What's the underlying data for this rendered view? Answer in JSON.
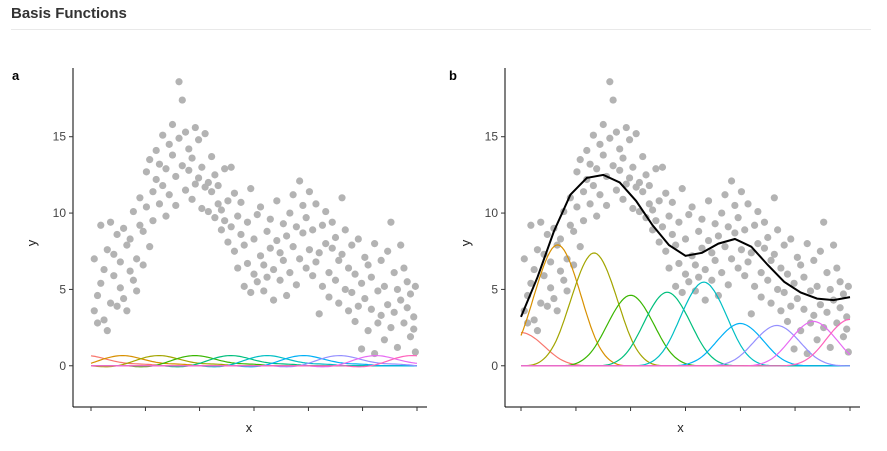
{
  "header": {
    "title": "Basis Functions"
  },
  "chart_data": [
    {
      "type": "scatter",
      "panel_label": "a",
      "xlabel": "x",
      "ylabel": "y",
      "xlim": [
        0,
        1
      ],
      "ylim": [
        -2.7,
        19.5
      ],
      "yticks": [
        0,
        5,
        10,
        15
      ],
      "xticks": [
        0,
        0.167,
        0.333,
        0.5,
        0.667,
        0.833,
        1.0
      ],
      "xtick_labels_shown": false,
      "point_color": "#b3b3b3",
      "points_description_free": true,
      "basis_count": 10,
      "basis_scale": 1.0,
      "basis_colors": [
        "#F8766D",
        "#D89000",
        "#A3A500",
        "#39B600",
        "#00BF7D",
        "#00BFC4",
        "#00B0F6",
        "#9590FF",
        "#E76BF3",
        "#FF62BC"
      ],
      "smooth_line": false
    },
    {
      "type": "scatter",
      "panel_label": "b",
      "xlabel": "x",
      "ylabel": "y",
      "xlim": [
        0,
        1
      ],
      "ylim": [
        -2.7,
        19.5
      ],
      "yticks": [
        0,
        5,
        10,
        15
      ],
      "xticks": [
        0,
        0.167,
        0.333,
        0.5,
        0.667,
        0.833,
        1.0
      ],
      "xtick_labels_shown": false,
      "point_color": "#b3b3b3",
      "basis_count": 10,
      "basis_colors": [
        "#F8766D",
        "#D89000",
        "#A3A500",
        "#39B600",
        "#00BF7D",
        "#00BFC4",
        "#00B0F6",
        "#9590FF",
        "#E76BF3",
        "#FF62BC"
      ],
      "basis_weights": [
        3.3,
        12.0,
        11.2,
        7.0,
        7.3,
        8.3,
        4.2,
        4.0,
        4.4,
        4.6
      ],
      "smooth_line": true,
      "smooth_color": "#000000",
      "smooth_x": [
        0.0,
        0.05,
        0.1,
        0.15,
        0.2,
        0.25,
        0.3,
        0.35,
        0.4,
        0.45,
        0.5,
        0.55,
        0.6,
        0.65,
        0.7,
        0.75,
        0.8,
        0.85,
        0.9,
        0.95,
        1.0
      ],
      "smooth_y": [
        3.2,
        5.8,
        8.8,
        11.2,
        12.3,
        12.5,
        12.0,
        10.8,
        9.2,
        7.9,
        7.2,
        7.4,
        8.0,
        8.3,
        7.8,
        6.6,
        5.5,
        4.8,
        4.4,
        4.3,
        4.5
      ]
    }
  ],
  "scatter_points": [
    [
      0.01,
      3.6
    ],
    [
      0.01,
      7.0
    ],
    [
      0.02,
      2.8
    ],
    [
      0.02,
      4.6
    ],
    [
      0.03,
      9.2
    ],
    [
      0.03,
      5.4
    ],
    [
      0.04,
      3.0
    ],
    [
      0.04,
      6.3
    ],
    [
      0.05,
      7.6
    ],
    [
      0.05,
      2.3
    ],
    [
      0.06,
      4.1
    ],
    [
      0.06,
      9.4
    ],
    [
      0.07,
      5.9
    ],
    [
      0.07,
      7.3
    ],
    [
      0.08,
      3.9
    ],
    [
      0.08,
      8.6
    ],
    [
      0.09,
      5.1
    ],
    [
      0.09,
      6.8
    ],
    [
      0.1,
      4.4
    ],
    [
      0.1,
      9.0
    ],
    [
      0.11,
      7.9
    ],
    [
      0.11,
      3.6
    ],
    [
      0.12,
      6.2
    ],
    [
      0.12,
      8.3
    ],
    [
      0.13,
      5.6
    ],
    [
      0.13,
      10.1
    ],
    [
      0.14,
      7.0
    ],
    [
      0.14,
      4.9
    ],
    [
      0.15,
      9.2
    ],
    [
      0.15,
      11.0
    ],
    [
      0.16,
      6.6
    ],
    [
      0.16,
      8.8
    ],
    [
      0.17,
      10.4
    ],
    [
      0.17,
      12.7
    ],
    [
      0.18,
      7.8
    ],
    [
      0.18,
      13.5
    ],
    [
      0.19,
      11.4
    ],
    [
      0.19,
      9.5
    ],
    [
      0.2,
      12.2
    ],
    [
      0.2,
      14.1
    ],
    [
      0.21,
      10.6
    ],
    [
      0.21,
      13.2
    ],
    [
      0.22,
      11.8
    ],
    [
      0.22,
      15.1
    ],
    [
      0.23,
      9.8
    ],
    [
      0.23,
      12.9
    ],
    [
      0.24,
      14.5
    ],
    [
      0.24,
      11.2
    ],
    [
      0.25,
      13.8
    ],
    [
      0.25,
      15.8
    ],
    [
      0.26,
      12.4
    ],
    [
      0.26,
      10.5
    ],
    [
      0.27,
      14.9
    ],
    [
      0.27,
      18.6
    ],
    [
      0.28,
      13.1
    ],
    [
      0.28,
      17.4
    ],
    [
      0.29,
      11.5
    ],
    [
      0.29,
      15.3
    ],
    [
      0.3,
      12.8
    ],
    [
      0.3,
      14.2
    ],
    [
      0.31,
      10.9
    ],
    [
      0.31,
      13.6
    ],
    [
      0.32,
      15.6
    ],
    [
      0.32,
      11.9
    ],
    [
      0.33,
      12.3
    ],
    [
      0.33,
      14.8
    ],
    [
      0.34,
      10.3
    ],
    [
      0.34,
      13.0
    ],
    [
      0.35,
      11.7
    ],
    [
      0.35,
      15.2
    ],
    [
      0.36,
      12.0
    ],
    [
      0.36,
      10.1
    ],
    [
      0.37,
      13.7
    ],
    [
      0.37,
      11.4
    ],
    [
      0.38,
      9.7
    ],
    [
      0.38,
      12.5
    ],
    [
      0.39,
      10.6
    ],
    [
      0.39,
      11.8
    ],
    [
      0.4,
      8.9
    ],
    [
      0.4,
      10.2
    ],
    [
      0.41,
      9.5
    ],
    [
      0.41,
      12.9
    ],
    [
      0.42,
      8.1
    ],
    [
      0.42,
      10.8
    ],
    [
      0.43,
      13.0
    ],
    [
      0.43,
      9.1
    ],
    [
      0.44,
      7.5
    ],
    [
      0.44,
      11.3
    ],
    [
      0.45,
      9.8
    ],
    [
      0.45,
      6.4
    ],
    [
      0.46,
      8.6
    ],
    [
      0.46,
      10.7
    ],
    [
      0.47,
      5.2
    ],
    [
      0.47,
      7.9
    ],
    [
      0.48,
      9.4
    ],
    [
      0.48,
      6.7
    ],
    [
      0.49,
      11.6
    ],
    [
      0.49,
      4.8
    ],
    [
      0.5,
      8.3
    ],
    [
      0.5,
      6.0
    ],
    [
      0.51,
      9.9
    ],
    [
      0.51,
      5.5
    ],
    [
      0.52,
      7.2
    ],
    [
      0.52,
      10.4
    ],
    [
      0.53,
      6.6
    ],
    [
      0.53,
      4.9
    ],
    [
      0.54,
      8.8
    ],
    [
      0.54,
      5.8
    ],
    [
      0.55,
      7.7
    ],
    [
      0.55,
      9.6
    ],
    [
      0.56,
      6.3
    ],
    [
      0.56,
      4.3
    ],
    [
      0.57,
      8.2
    ],
    [
      0.57,
      10.8
    ],
    [
      0.58,
      5.6
    ],
    [
      0.58,
      7.4
    ],
    [
      0.59,
      9.3
    ],
    [
      0.59,
      6.9
    ],
    [
      0.6,
      4.6
    ],
    [
      0.6,
      8.5
    ],
    [
      0.61,
      10.0
    ],
    [
      0.61,
      6.1
    ],
    [
      0.62,
      7.8
    ],
    [
      0.62,
      11.2
    ],
    [
      0.63,
      5.3
    ],
    [
      0.63,
      9.1
    ],
    [
      0.64,
      12.1
    ],
    [
      0.64,
      7.0
    ],
    [
      0.65,
      8.7
    ],
    [
      0.65,
      10.5
    ],
    [
      0.66,
      6.4
    ],
    [
      0.66,
      9.7
    ],
    [
      0.67,
      11.4
    ],
    [
      0.67,
      7.6
    ],
    [
      0.68,
      5.9
    ],
    [
      0.68,
      8.9
    ],
    [
      0.69,
      10.6
    ],
    [
      0.69,
      6.8
    ],
    [
      0.7,
      3.4
    ],
    [
      0.7,
      7.4
    ],
    [
      0.71,
      9.2
    ],
    [
      0.71,
      5.2
    ],
    [
      0.72,
      8.0
    ],
    [
      0.72,
      10.1
    ],
    [
      0.73,
      6.1
    ],
    [
      0.73,
      4.5
    ],
    [
      0.74,
      7.7
    ],
    [
      0.74,
      9.4
    ],
    [
      0.75,
      5.6
    ],
    [
      0.75,
      8.4
    ],
    [
      0.76,
      6.9
    ],
    [
      0.76,
      4.1
    ],
    [
      0.77,
      11.0
    ],
    [
      0.77,
      7.3
    ],
    [
      0.78,
      5.0
    ],
    [
      0.78,
      8.9
    ],
    [
      0.79,
      3.6
    ],
    [
      0.79,
      6.4
    ],
    [
      0.8,
      7.9
    ],
    [
      0.8,
      4.8
    ],
    [
      0.81,
      2.9
    ],
    [
      0.81,
      6.0
    ],
    [
      0.82,
      8.3
    ],
    [
      0.82,
      3.9
    ],
    [
      0.83,
      5.4
    ],
    [
      0.83,
      1.1
    ],
    [
      0.84,
      7.1
    ],
    [
      0.84,
      4.4
    ],
    [
      0.85,
      2.3
    ],
    [
      0.85,
      6.6
    ],
    [
      0.86,
      3.7
    ],
    [
      0.86,
      5.8
    ],
    [
      0.87,
      0.8
    ],
    [
      0.87,
      8.0
    ],
    [
      0.88,
      4.9
    ],
    [
      0.88,
      2.8
    ],
    [
      0.89,
      6.9
    ],
    [
      0.89,
      3.3
    ],
    [
      0.9,
      5.2
    ],
    [
      0.9,
      1.7
    ],
    [
      0.91,
      7.5
    ],
    [
      0.91,
      4.0
    ],
    [
      0.92,
      9.4
    ],
    [
      0.92,
      2.5
    ],
    [
      0.93,
      6.1
    ],
    [
      0.93,
      3.5
    ],
    [
      0.94,
      5.0
    ],
    [
      0.94,
      1.2
    ],
    [
      0.95,
      7.9
    ],
    [
      0.95,
      4.3
    ],
    [
      0.96,
      2.8
    ],
    [
      0.96,
      6.4
    ],
    [
      0.97,
      3.8
    ],
    [
      0.97,
      5.5
    ],
    [
      0.98,
      1.9
    ],
    [
      0.98,
      4.7
    ],
    [
      0.99,
      3.2
    ],
    [
      0.99,
      2.4
    ],
    [
      0.995,
      5.2
    ],
    [
      0.995,
      0.9
    ]
  ]
}
